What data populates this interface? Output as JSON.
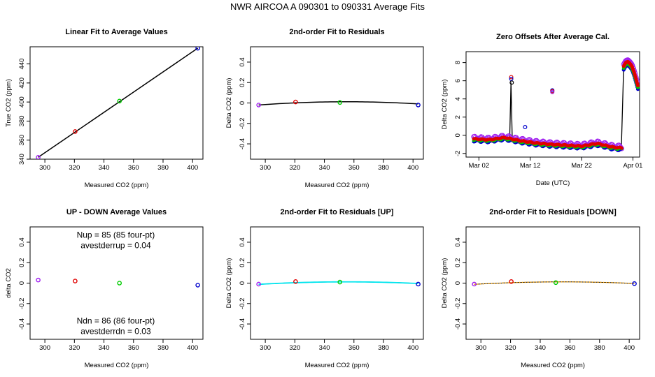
{
  "figure": {
    "title": "NWR   AIRCOA A   090301 to 090331   Average Fits"
  },
  "colors": {
    "black": "#000000",
    "red": "#e00000",
    "green": "#00cc00",
    "blue": "#0000cc",
    "purple": "#a020f0",
    "cyan": "#00e5ee",
    "orange": "#ffa500"
  },
  "chart_data": [
    {
      "id": "p1",
      "type": "scatter",
      "title": "Linear Fit to Average Values",
      "xlabel": "Measured CO2 (ppm)",
      "ylabel": "True CO2 (ppm)",
      "xlim": [
        290,
        407
      ],
      "ylim": [
        340,
        458
      ],
      "xticks": [
        300,
        320,
        340,
        360,
        380,
        400
      ],
      "yticks": [
        340,
        360,
        380,
        400,
        420,
        440
      ],
      "points": [
        {
          "x": 295.5,
          "y": 342.0,
          "color": "purple"
        },
        {
          "x": 320.5,
          "y": 369.0,
          "color": "red"
        },
        {
          "x": 350.5,
          "y": 401.0,
          "color": "green"
        },
        {
          "x": 403.5,
          "y": 456.5,
          "color": "blue"
        }
      ],
      "lines": [
        {
          "x": [
            295.5,
            403.5
          ],
          "y": [
            342.0,
            456.5
          ],
          "color": "black",
          "width": 1.5
        }
      ]
    },
    {
      "id": "p2",
      "type": "scatter",
      "title": "2nd-order Fit to Residuals",
      "xlabel": "Measured CO2 (ppm)",
      "ylabel": "Delta CO2 (ppm)",
      "xlim": [
        290,
        407
      ],
      "ylim": [
        -0.55,
        0.55
      ],
      "xticks": [
        300,
        320,
        340,
        360,
        380,
        400
      ],
      "yticks": [
        -0.4,
        -0.2,
        0.0,
        0.2,
        0.4
      ],
      "points": [
        {
          "x": 295.5,
          "y": -0.02,
          "color": "purple"
        },
        {
          "x": 320.5,
          "y": 0.01,
          "color": "red"
        },
        {
          "x": 350.5,
          "y": 0.005,
          "color": "green"
        },
        {
          "x": 403.5,
          "y": -0.02,
          "color": "blue"
        }
      ],
      "curves": [
        {
          "x0": 295.5,
          "x1": 403.5,
          "vertex": 355,
          "peak": 0.012,
          "edge": -0.02,
          "color": "black",
          "width": 1.5
        }
      ]
    },
    {
      "id": "p3",
      "type": "line",
      "title": "Zero Offsets After Average Cal.",
      "xlabel": "Date (UTC)",
      "ylabel": "Delta CO2 (ppm)",
      "xlim": [
        -1.5,
        32.3
      ],
      "ylim": [
        -2.4,
        9.2
      ],
      "xticks": [
        1,
        11,
        21,
        31
      ],
      "xticklabels": [
        "Mar 02",
        "Mar 12",
        "Mar 22",
        "Apr 01"
      ],
      "yticks": [
        -2,
        0,
        2,
        4,
        6,
        8
      ],
      "series": [
        {
          "name": "purple",
          "color": "purple",
          "offset": 0.1,
          "spread": 0.18,
          "marker": "circle"
        },
        {
          "name": "blue",
          "color": "blue",
          "offset": -0.2,
          "spread": 0.12,
          "marker": "dot"
        },
        {
          "name": "green",
          "color": "green",
          "offset": -0.1,
          "spread": 0.08,
          "marker": "dot"
        },
        {
          "name": "red",
          "color": "red",
          "offset": 0.0,
          "spread": 0.05,
          "marker": "dot"
        }
      ],
      "baseline": {
        "x": [
          0,
          3,
          6,
          9,
          12,
          15,
          18,
          21,
          24,
          27,
          28.8
        ],
        "y": [
          -0.4,
          -0.5,
          -0.25,
          -0.6,
          -0.85,
          -1.0,
          -1.1,
          -1.2,
          -0.9,
          -1.3,
          -1.4
        ]
      },
      "tail": {
        "x": [
          29.2,
          29.6,
          30.0,
          30.4,
          30.8,
          31.2,
          31.6,
          32.0
        ],
        "y": [
          7.6,
          8.0,
          8.1,
          7.9,
          7.6,
          7.0,
          6.2,
          5.4
        ]
      },
      "spikes": [
        {
          "x": 7.3,
          "y": 6.4,
          "color": "red"
        },
        {
          "x": 7.3,
          "y": 6.2,
          "color": "blue"
        },
        {
          "x": 7.4,
          "y": 5.8,
          "color": "black"
        },
        {
          "x": 15.3,
          "y": 4.95,
          "color": "blue"
        },
        {
          "x": 15.3,
          "y": 4.85,
          "color": "red"
        },
        {
          "x": 15.3,
          "y": 4.75,
          "color": "purple"
        },
        {
          "x": 10.0,
          "y": 0.9,
          "color": "blue"
        }
      ]
    },
    {
      "id": "p4",
      "type": "scatter",
      "title": "UP - DOWN Average Values",
      "xlabel": "Measured CO2 (ppm)",
      "ylabel": "delta CO2",
      "xlim": [
        290,
        407
      ],
      "ylim": [
        -0.55,
        0.55
      ],
      "xticks": [
        300,
        320,
        340,
        360,
        380,
        400
      ],
      "yticks": [
        -0.4,
        -0.2,
        0.0,
        0.2,
        0.4
      ],
      "points": [
        {
          "x": 295.5,
          "y": 0.03,
          "color": "purple"
        },
        {
          "x": 320.5,
          "y": 0.02,
          "color": "red"
        },
        {
          "x": 350.5,
          "y": 0.0,
          "color": "green"
        },
        {
          "x": 403.5,
          "y": -0.02,
          "color": "blue"
        }
      ],
      "annotations": [
        {
          "text": "Nup = 85 (85 four-pt)",
          "x": 348,
          "y": 0.47
        },
        {
          "text": "avestderrup =  0.04",
          "x": 348,
          "y": 0.37
        },
        {
          "text": "Ndn = 86 (86 four-pt)",
          "x": 348,
          "y": -0.37
        },
        {
          "text": "avestderrdn =  0.03",
          "x": 348,
          "y": -0.47
        }
      ]
    },
    {
      "id": "p5",
      "type": "scatter",
      "title": "2nd-order Fit to Residuals [UP]",
      "xlabel": "Measured CO2 (ppm)",
      "ylabel": "Delta CO2 (ppm)",
      "xlim": [
        290,
        407
      ],
      "ylim": [
        -0.55,
        0.55
      ],
      "xticks": [
        300,
        320,
        340,
        360,
        380,
        400
      ],
      "yticks": [
        -0.4,
        -0.2,
        0.0,
        0.2,
        0.4
      ],
      "points": [
        {
          "x": 295.5,
          "y": -0.01,
          "color": "purple"
        },
        {
          "x": 320.5,
          "y": 0.015,
          "color": "red"
        },
        {
          "x": 350.5,
          "y": 0.01,
          "color": "green"
        },
        {
          "x": 403.5,
          "y": -0.01,
          "color": "blue"
        }
      ],
      "curves": [
        {
          "x0": 295.5,
          "x1": 403.5,
          "vertex": 355,
          "peak": 0.012,
          "edge": -0.012,
          "color": "black",
          "width": 1.2
        },
        {
          "x0": 295.5,
          "x1": 403.5,
          "vertex": 355,
          "peak": 0.012,
          "edge": -0.012,
          "color": "cyan",
          "width": 1.8
        }
      ]
    },
    {
      "id": "p6",
      "type": "scatter",
      "title": "2nd-order Fit to Residuals [DOWN]",
      "xlabel": "Measured CO2 (ppm)",
      "ylabel": "Delta CO2 (ppm)",
      "xlim": [
        290,
        407
      ],
      "ylim": [
        -0.55,
        0.55
      ],
      "xticks": [
        300,
        320,
        340,
        360,
        380,
        400
      ],
      "yticks": [
        -0.4,
        -0.2,
        0.0,
        0.2,
        0.4
      ],
      "points": [
        {
          "x": 295.5,
          "y": -0.01,
          "color": "purple"
        },
        {
          "x": 320.5,
          "y": 0.015,
          "color": "red"
        },
        {
          "x": 350.5,
          "y": 0.005,
          "color": "green"
        },
        {
          "x": 403.5,
          "y": -0.005,
          "color": "blue"
        }
      ],
      "curves": [
        {
          "x0": 295.5,
          "x1": 403.5,
          "vertex": 355,
          "peak": 0.012,
          "edge": -0.012,
          "color": "black",
          "width": 1.0
        },
        {
          "x0": 295.5,
          "x1": 403.5,
          "vertex": 355,
          "peak": 0.012,
          "edge": -0.012,
          "color": "orange",
          "width": 1.4,
          "dash": "2,2"
        }
      ]
    }
  ]
}
